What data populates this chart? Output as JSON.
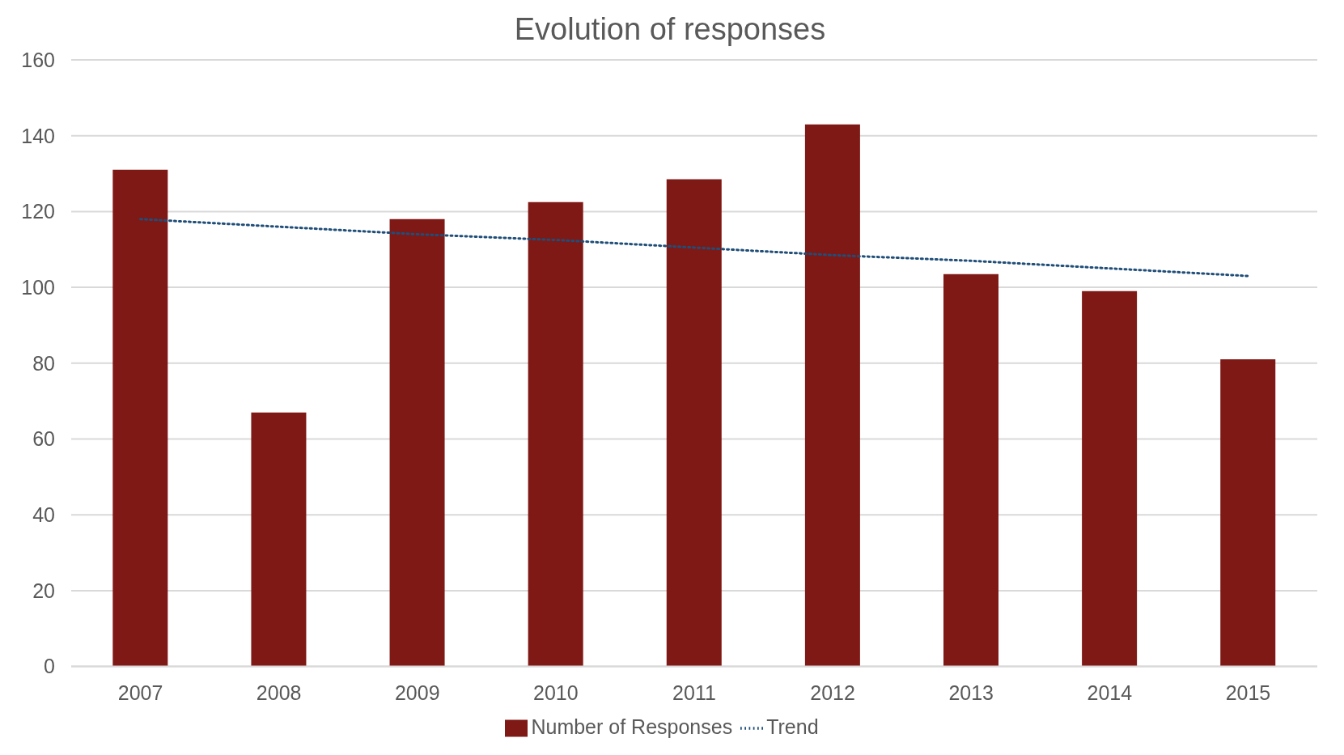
{
  "chart_data": {
    "type": "bar",
    "title": "Evolution of responses",
    "categories": [
      "2007",
      "2008",
      "2009",
      "2010",
      "2011",
      "2012",
      "2013",
      "2014",
      "2015"
    ],
    "series": [
      {
        "name": "Number of Responses",
        "color": "#7f1916",
        "values": [
          131,
          67,
          118,
          122.5,
          128.5,
          143,
          103.5,
          99,
          81
        ]
      },
      {
        "name": "Trend",
        "type": "line",
        "color": "#1f4e79",
        "line_style": "dotted",
        "marker": "none",
        "values": [
          118,
          116,
          114,
          112.5,
          110.5,
          108.5,
          107,
          105,
          103
        ]
      }
    ],
    "ylim": [
      0,
      160
    ],
    "yticks": [
      0,
      20,
      40,
      60,
      80,
      100,
      120,
      140,
      160
    ],
    "grid": "y",
    "legend": "bottom"
  }
}
